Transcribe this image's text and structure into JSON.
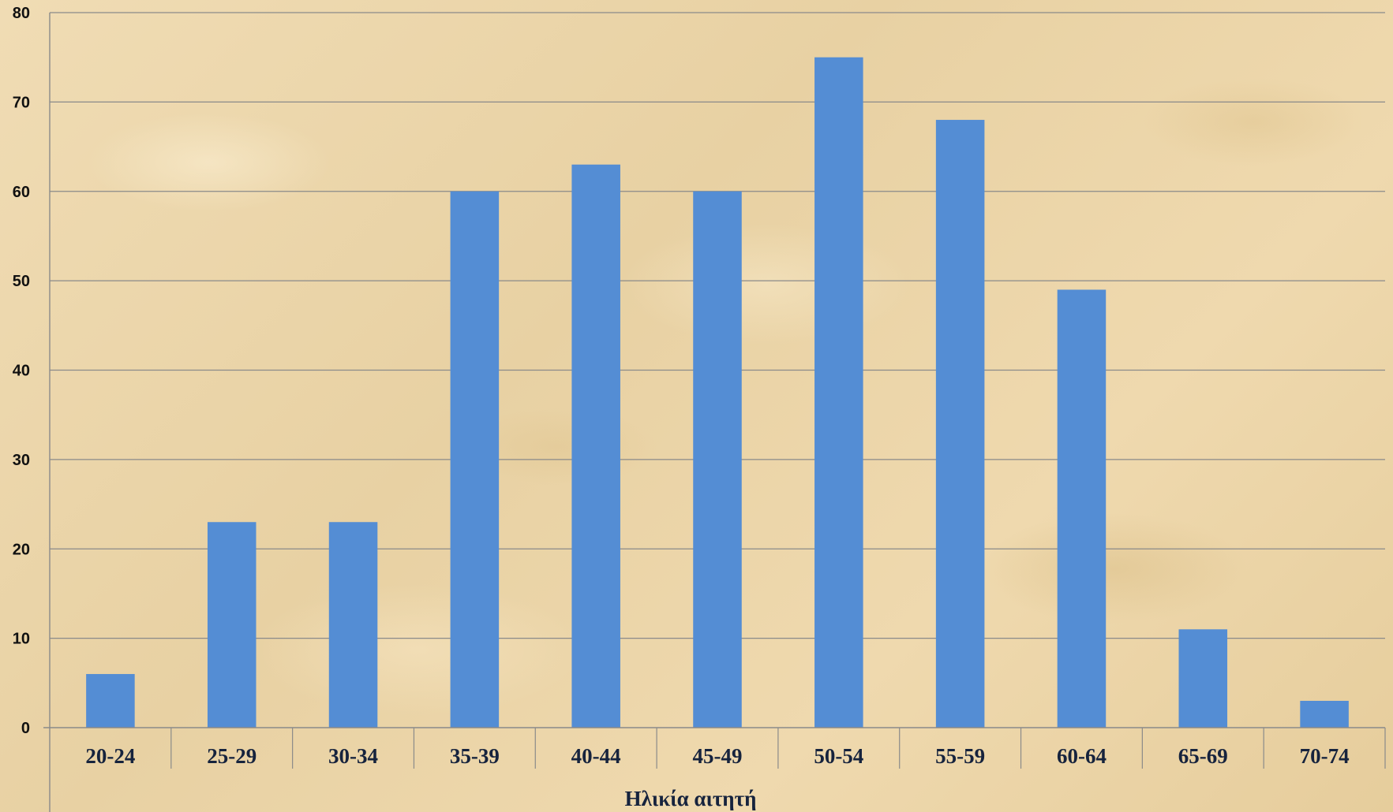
{
  "chart_data": {
    "type": "bar",
    "categories": [
      "20-24",
      "25-29",
      "30-34",
      "35-39",
      "40-44",
      "45-49",
      "50-54",
      "55-59",
      "60-64",
      "65-69",
      "70-74"
    ],
    "values": [
      6,
      23,
      23,
      60,
      63,
      60,
      75,
      68,
      49,
      11,
      3
    ],
    "title": "",
    "xlabel": "Ηλικία αιτητή",
    "ylabel": "",
    "ylim": [
      0,
      80
    ],
    "yticks": [
      0,
      10,
      20,
      30,
      40,
      50,
      60,
      70,
      80
    ],
    "grid": true,
    "legend": "none",
    "colors": {
      "bar": "#548dd4",
      "grid": "#8a8a8a",
      "axis": "#8a8a8a",
      "tick_text": "#111111",
      "category_text": "#16233d"
    }
  }
}
